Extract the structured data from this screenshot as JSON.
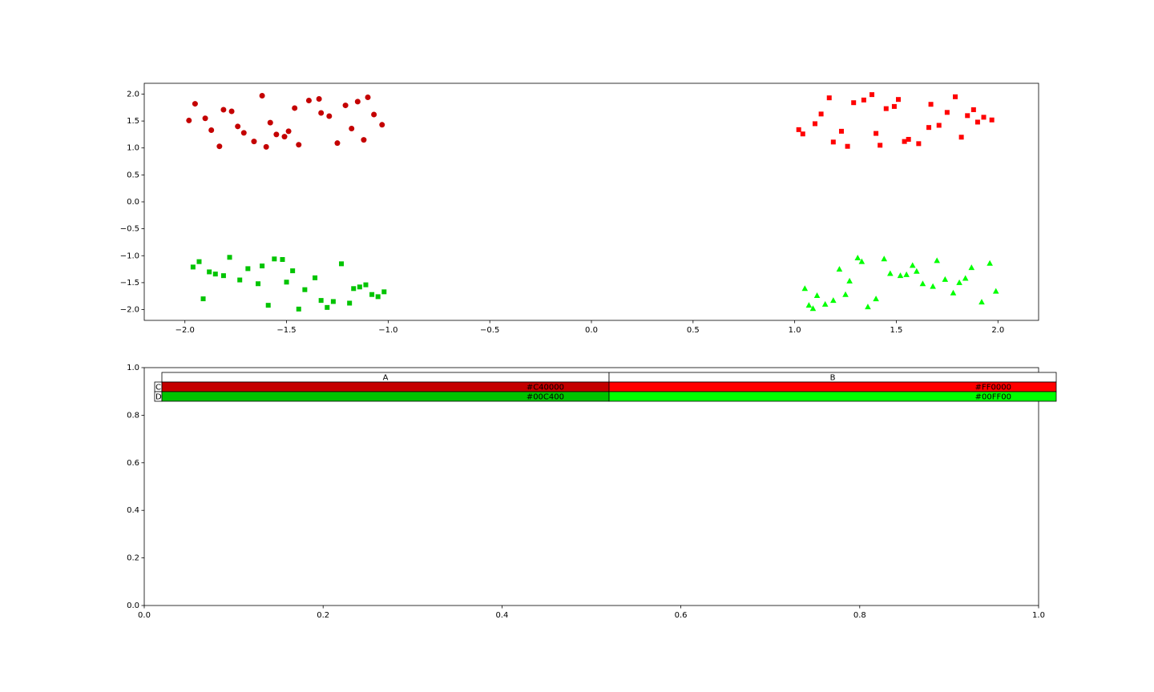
{
  "chart_data": [
    {
      "type": "scatter",
      "xlim": [
        -2.2,
        2.2
      ],
      "ylim": [
        -2.2,
        2.2
      ],
      "xticks": [
        {
          "value": -2,
          "label": "−2.0"
        },
        {
          "value": -1.5,
          "label": "−1.5"
        },
        {
          "value": -1,
          "label": "−1.0"
        },
        {
          "value": -0.5,
          "label": "−0.5"
        },
        {
          "value": 0,
          "label": "0.0"
        },
        0.5,
        {
          "value": 1,
          "label": "1.0"
        },
        1.5,
        {
          "value": 2,
          "label": "2.0"
        }
      ],
      "yticks": [
        {
          "value": -2,
          "label": "−2.0"
        },
        {
          "value": -1.5,
          "label": "−1.5"
        },
        {
          "value": -1,
          "label": "−1.0"
        },
        {
          "value": -0.5,
          "label": "−0.5"
        },
        {
          "value": 0,
          "label": "0.0"
        },
        0.5,
        {
          "value": 1,
          "label": "1.0"
        },
        1.5,
        {
          "value": 2,
          "label": "2.0"
        }
      ],
      "series": [
        {
          "color": "#C40000",
          "marker": "circle",
          "x": [
            -1.95,
            -1.12,
            -1.58,
            -1.83,
            -1.34,
            -1.07,
            -1.71,
            -1.46,
            -1.25,
            -1.9,
            -1.62,
            -1.18,
            -1.51,
            -1.77,
            -1.03,
            -1.39,
            -1.66,
            -1.29,
            -1.87,
            -1.44,
            -1.21,
            -1.98,
            -1.55,
            -1.1,
            -1.74,
            -1.33,
            -1.6,
            -1.15,
            -1.49,
            -1.81
          ],
          "values": [
            1.82,
            1.15,
            1.47,
            1.03,
            1.91,
            1.62,
            1.28,
            1.74,
            1.09,
            1.55,
            1.97,
            1.36,
            1.21,
            1.68,
            1.43,
            1.88,
            1.12,
            1.59,
            1.33,
            1.06,
            1.79,
            1.51,
            1.25,
            1.94,
            1.4,
            1.65,
            1.02,
            1.86,
            1.31,
            1.71
          ]
        },
        {
          "color": "#FF0000",
          "marker": "square",
          "x": [
            1.04,
            1.88,
            1.42,
            1.17,
            1.66,
            1.93,
            1.29,
            1.54,
            1.75,
            1.1,
            1.38,
            1.82,
            1.49,
            1.23,
            1.97,
            1.61,
            1.34,
            1.71,
            1.13,
            1.56,
            1.79,
            1.02,
            1.45,
            1.9,
            1.26,
            1.67,
            1.4,
            1.85,
            1.51,
            1.19
          ],
          "values": [
            1.26,
            1.71,
            1.05,
            1.93,
            1.38,
            1.57,
            1.84,
            1.12,
            1.66,
            1.45,
            1.99,
            1.2,
            1.77,
            1.31,
            1.52,
            1.08,
            1.89,
            1.42,
            1.63,
            1.16,
            1.95,
            1.34,
            1.73,
            1.48,
            1.03,
            1.81,
            1.27,
            1.6,
            1.9,
            1.11
          ]
        },
        {
          "color": "#00C400",
          "marker": "square",
          "x": [
            -1.41,
            -1.96,
            -1.19,
            -1.73,
            -1.52,
            -1.08,
            -1.85,
            -1.3,
            -1.64,
            -1.23,
            -1.91,
            -1.47,
            -1.02,
            -1.78,
            -1.36,
            -1.59,
            -1.14,
            -1.69,
            -1.27,
            -1.93,
            -1.5,
            -1.05,
            -1.81,
            -1.44,
            -1.62,
            -1.17,
            -1.88,
            -1.33,
            -1.56,
            -1.11
          ],
          "values": [
            -1.63,
            -1.21,
            -1.88,
            -1.45,
            -1.07,
            -1.72,
            -1.34,
            -1.96,
            -1.52,
            -1.15,
            -1.8,
            -1.28,
            -1.67,
            -1.03,
            -1.41,
            -1.92,
            -1.58,
            -1.24,
            -1.85,
            -1.11,
            -1.49,
            -1.76,
            -1.37,
            -1.99,
            -1.19,
            -1.61,
            -1.3,
            -1.83,
            -1.06,
            -1.54
          ]
        },
        {
          "color": "#00FF00",
          "marker": "triangle",
          "x": [
            1.58,
            1.11,
            1.84,
            1.36,
            1.7,
            1.05,
            1.47,
            1.92,
            1.22,
            1.63,
            1.31,
            1.78,
            1.15,
            1.52,
            1.96,
            1.4,
            1.27,
            1.87,
            1.09,
            1.68,
            1.44,
            1.74,
            1.19,
            1.6,
            1.99,
            1.33,
            1.81,
            1.07,
            1.55,
            1.25
          ],
          "values": [
            -1.18,
            -1.74,
            -1.42,
            -1.95,
            -1.09,
            -1.61,
            -1.33,
            -1.86,
            -1.25,
            -1.52,
            -1.04,
            -1.69,
            -1.9,
            -1.37,
            -1.14,
            -1.8,
            -1.47,
            -1.22,
            -1.98,
            -1.57,
            -1.06,
            -1.44,
            -1.83,
            -1.29,
            -1.66,
            -1.11,
            -1.5,
            -1.92,
            -1.35,
            -1.72
          ]
        }
      ]
    },
    {
      "type": "table",
      "xlim": [
        0,
        1
      ],
      "ylim": [
        0,
        1
      ],
      "xticks": [
        {
          "value": 0,
          "label": "0.0"
        },
        0.2,
        0.4,
        0.6,
        0.8,
        {
          "value": 1,
          "label": "1.0"
        }
      ],
      "yticks": [
        {
          "value": 0,
          "label": "0.0"
        },
        0.2,
        0.4,
        0.6,
        0.8,
        {
          "value": 1,
          "label": "1.0"
        }
      ],
      "table": {
        "col_labels": [
          "A",
          "B"
        ],
        "row_labels": [
          "C",
          "D"
        ],
        "cells": [
          [
            "#C40000",
            "#FF0000"
          ],
          [
            "#00C400",
            "#00FF00"
          ]
        ]
      }
    }
  ]
}
